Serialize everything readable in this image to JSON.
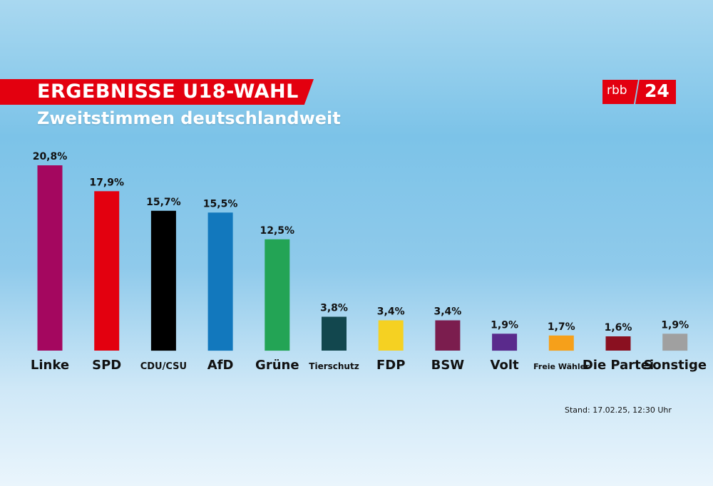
{
  "header": {
    "title": "ERGEBNISSE U18-WAHL",
    "subtitle": "Zweitstimmen deutschlandweit"
  },
  "logo": {
    "left": "rbb",
    "right": "24",
    "color": "#e3000f"
  },
  "footer": {
    "stand": "Stand: 17.02.25, 12:30 Uhr"
  },
  "chart_data": {
    "type": "bar",
    "title": "ERGEBNISSE U18-WAHL",
    "subtitle": "Zweitstimmen deutschlandweit",
    "unit": "%",
    "ylim": [
      0,
      20.8
    ],
    "grid": false,
    "categories": [
      "Linke",
      "SPD",
      "CDU/CSU",
      "AfD",
      "Grüne",
      "Tierschutz",
      "FDP",
      "BSW",
      "Volt",
      "Freie Wähler",
      "Die Partei",
      "Sonstige"
    ],
    "values": [
      20.8,
      17.9,
      15.7,
      15.5,
      12.5,
      3.8,
      3.4,
      3.4,
      1.9,
      1.7,
      1.6,
      1.9
    ],
    "value_labels": [
      "20,8%",
      "17,9%",
      "15,7%",
      "15,5%",
      "12,5%",
      "3,8%",
      "3,4%",
      "3,4%",
      "1,9%",
      "1,7%",
      "1,6%",
      "1,9%"
    ],
    "colors": [
      "#a4075f",
      "#e3000f",
      "#000000",
      "#1278bd",
      "#23a455",
      "#12474e",
      "#f5d122",
      "#7b1d4e",
      "#5a2a8c",
      "#f6a01a",
      "#8a1020",
      "#a0a0a0"
    ]
  }
}
